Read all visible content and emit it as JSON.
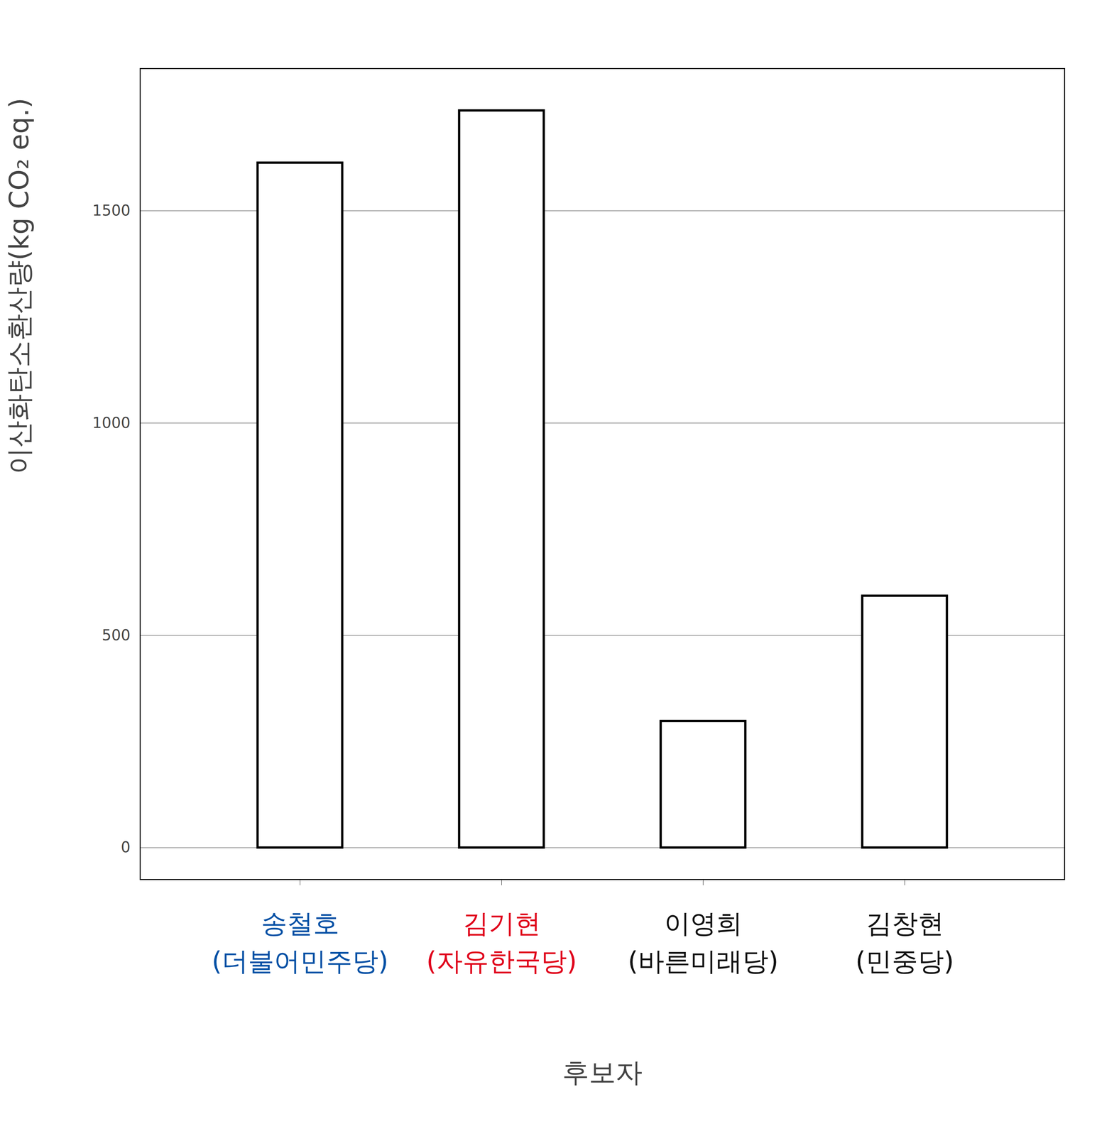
{
  "chart_data": {
    "type": "bar",
    "x_label": "후보자",
    "y_label": "이산화탄소환산량(kg CO₂ eq.)",
    "categories": [
      "송철호\n(더불어민주당)",
      "김기현\n(자유한국당)",
      "이영희\n(바른미래당)",
      "김창현\n(민중당)"
    ],
    "values": [
      1613,
      1736,
      298,
      593
    ],
    "color": "#ffffff",
    "ylim": [
      -75,
      1835
    ],
    "yticks": [
      0,
      500,
      1000,
      1500
    ],
    "grid": true
  }
}
